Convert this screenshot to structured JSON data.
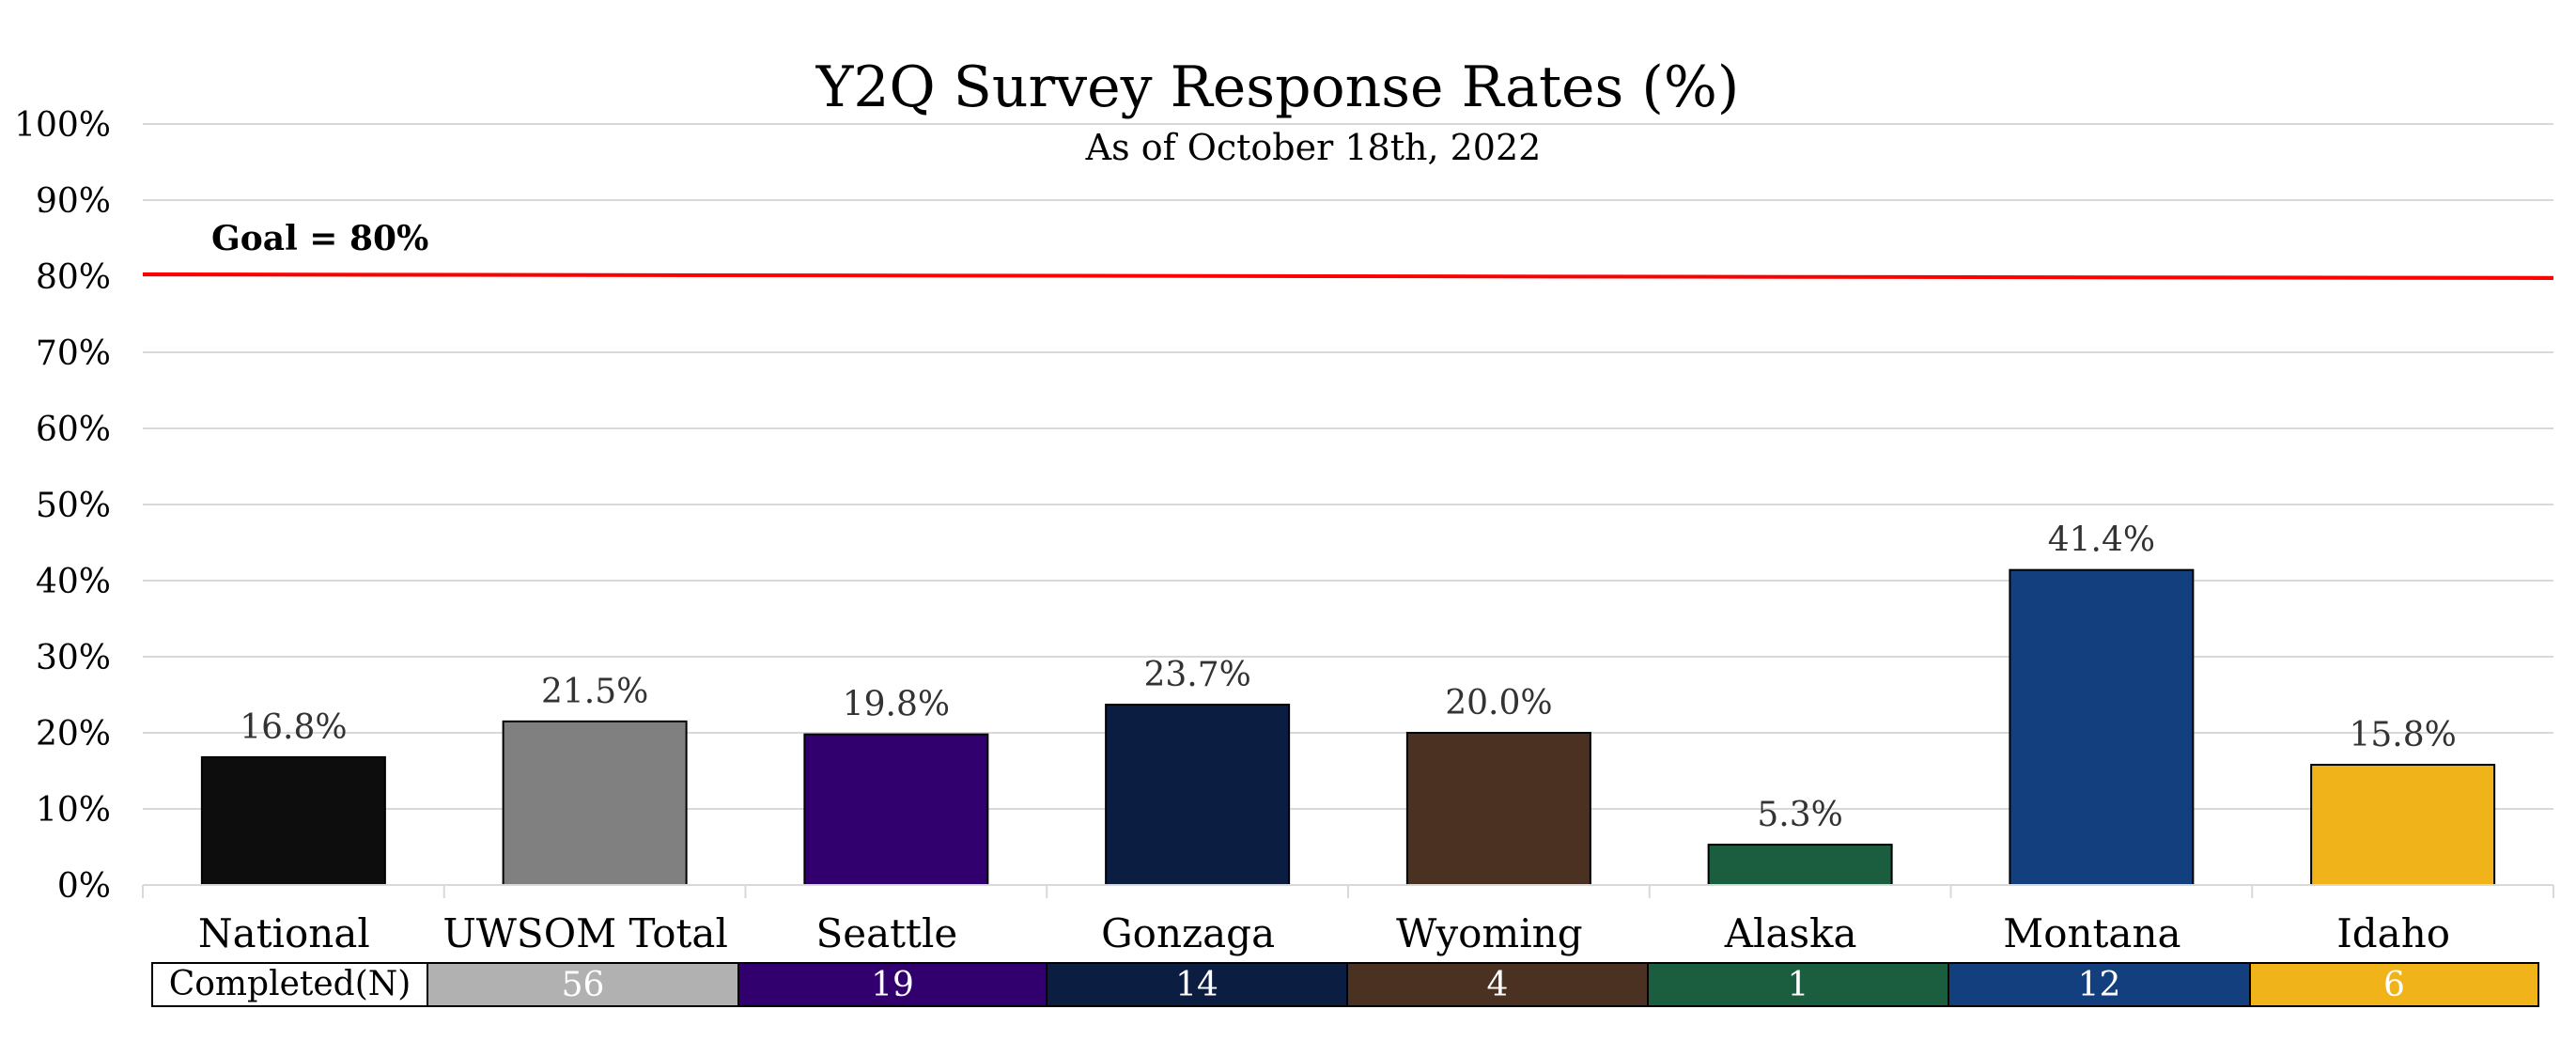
{
  "chart_data": {
    "type": "bar",
    "title": "Y2Q Survey Response Rates (%)",
    "subtitle": "As of October 18th, 2022",
    "categories": [
      "National",
      "UWSOM Total",
      "Seattle",
      "Gonzaga",
      "Wyoming",
      "Alaska",
      "Montana",
      "Idaho"
    ],
    "values": [
      16.8,
      21.5,
      19.8,
      23.7,
      20.0,
      5.3,
      41.4,
      15.8
    ],
    "value_labels": [
      "16.8%",
      "21.5%",
      "19.8%",
      "23.7%",
      "20.0%",
      "5.3%",
      "41.4%",
      "15.8%"
    ],
    "colors": [
      "#0d0d0d",
      "#808080",
      "#32006e",
      "#0c1d42",
      "#4a3122",
      "#1b5e3f",
      "#143f7f",
      "#f0b31a"
    ],
    "ylim": [
      0,
      100
    ],
    "yticks": [
      0,
      10,
      20,
      30,
      40,
      50,
      60,
      70,
      80,
      90,
      100
    ],
    "ytick_labels": [
      "0%",
      "10%",
      "20%",
      "30%",
      "40%",
      "50%",
      "60%",
      "70%",
      "80%",
      "90%",
      "100%"
    ],
    "grid": true,
    "goal": {
      "label": "Goal = 80%",
      "value": 80,
      "color": "#ff0000"
    },
    "table": {
      "header": "Completed(N)",
      "values": [
        "",
        "56",
        "19",
        "14",
        "4",
        "1",
        "12",
        "6"
      ],
      "colors": [
        "#ffffff",
        "#b1b1b1",
        "#32006e",
        "#0c1d42",
        "#4a3122",
        "#1b5e3f",
        "#143f7f",
        "#f0b31a"
      ]
    }
  }
}
